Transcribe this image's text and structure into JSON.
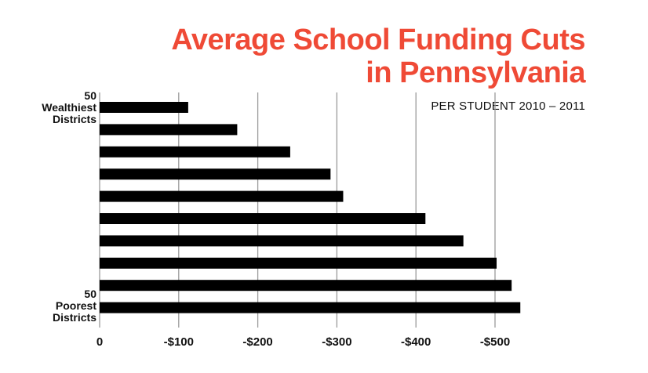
{
  "title_line1": "Average School Funding Cuts",
  "title_line2": "in Pennsylvania",
  "subtitle": "PER STUDENT 2010 – 2011",
  "top_label": [
    "50",
    "Wealthiest",
    "Districts"
  ],
  "bottom_label": [
    "50",
    "Poorest",
    "Districts"
  ],
  "colors": {
    "title": "#ef4a36",
    "bar": "#000000",
    "grid": "#9a9a9a"
  },
  "chart_data": {
    "type": "bar",
    "orientation": "horizontal",
    "title": "Average School Funding Cuts in Pennsylvania",
    "subtitle": "PER STUDENT 2010 – 2011",
    "xlabel": "",
    "ylabel": "",
    "xlim": [
      0,
      -550
    ],
    "xticks": [
      0,
      -100,
      -200,
      -300,
      -400,
      -500
    ],
    "xtick_labels": [
      "0",
      "-$100",
      "-$200",
      "-$300",
      "-$400",
      "-$500"
    ],
    "grid": true,
    "values": [
      -112,
      -174,
      -241,
      -292,
      -308,
      -412,
      -460,
      -502,
      -521,
      -532
    ]
  }
}
